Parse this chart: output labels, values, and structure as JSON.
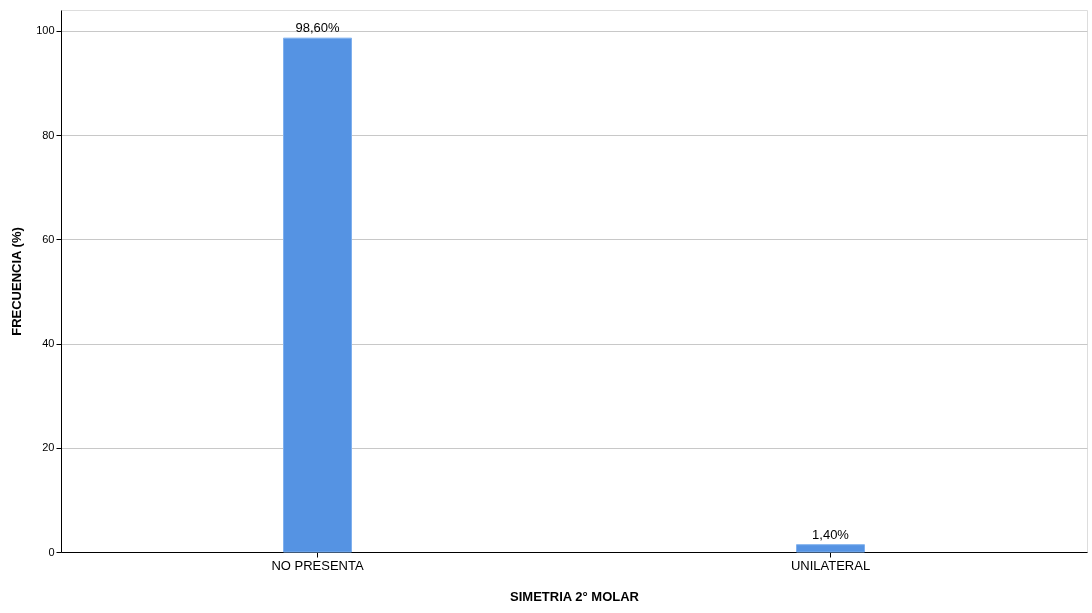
{
  "chart_data": {
    "type": "bar",
    "xlabel": "SIMETRIA 2° MOLAR",
    "ylabel": "FRECUENCIA (%)",
    "categories": [
      "NO PRESENTA",
      "UNILATERAL"
    ],
    "values": [
      98.6,
      1.4
    ],
    "color": "#5593e3",
    "value_labels": [
      "98,60%",
      "1,40%"
    ],
    "ylim": [
      0,
      104
    ],
    "yticks": [
      0,
      20,
      40,
      60,
      80,
      100
    ],
    "grid": "y"
  }
}
